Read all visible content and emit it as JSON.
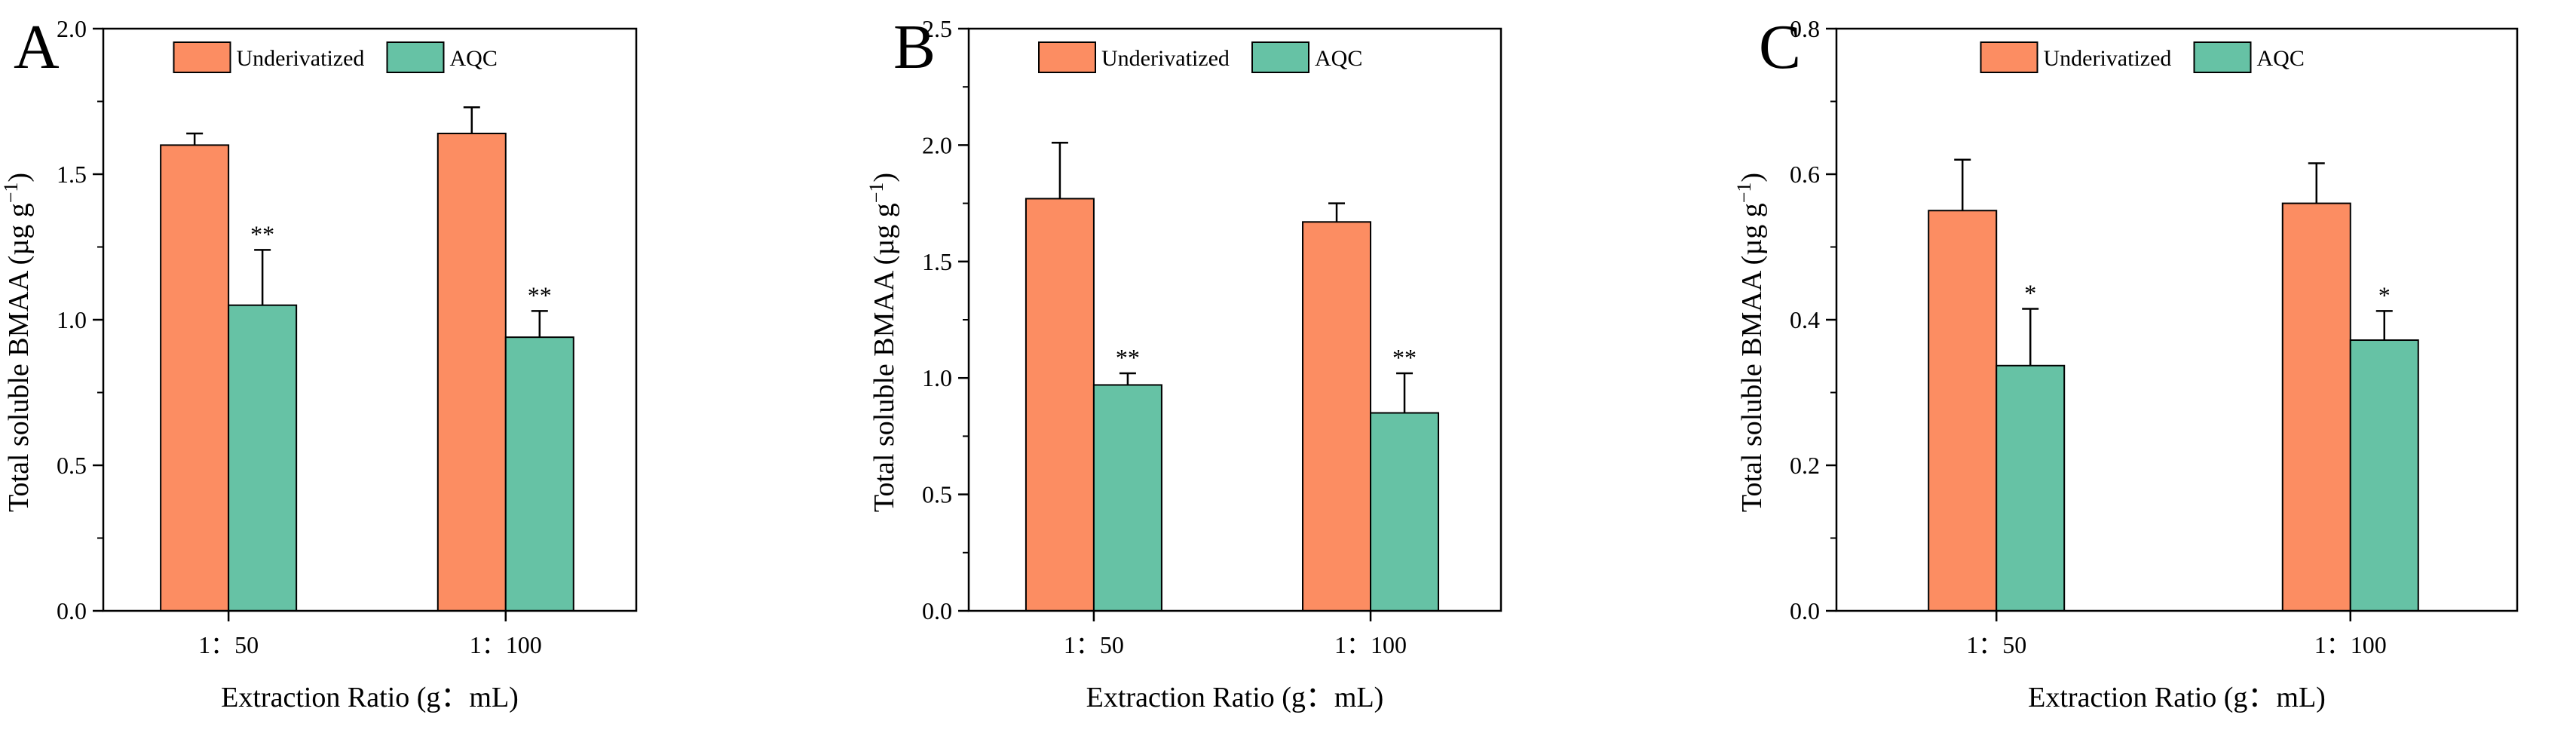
{
  "colors": {
    "underivatized": "#FC8D62",
    "aqc": "#66C2A5",
    "axis": "#000000"
  },
  "legend": {
    "underivatized": "Underivatized",
    "aqc": "AQC"
  },
  "chart_data": [
    {
      "type": "bar",
      "panel": "A",
      "categories": [
        "1：50",
        "1：100"
      ],
      "series": [
        {
          "name": "Underivatized",
          "values": [
            1.6,
            1.64
          ],
          "errors": [
            0.04,
            0.09
          ],
          "sig": [
            "",
            ""
          ]
        },
        {
          "name": "AQC",
          "values": [
            1.05,
            0.94
          ],
          "errors": [
            0.19,
            0.09
          ],
          "sig": [
            "**",
            "**"
          ]
        }
      ],
      "xlabel": "Extraction Ratio (g：mL)",
      "ylabel_main": "Total soluble BMAA (µg g",
      "ylabel_sup": "−1",
      "ylabel_end": ")",
      "ylim": [
        0,
        2.0
      ],
      "yticks": [
        "0.0",
        "0.5",
        "1.0",
        "1.5",
        "2.0"
      ],
      "legend_position": "top-center"
    },
    {
      "type": "bar",
      "panel": "B",
      "categories": [
        "1：50",
        "1：100"
      ],
      "series": [
        {
          "name": "Underivatized",
          "values": [
            1.77,
            1.67
          ],
          "errors": [
            0.24,
            0.08
          ],
          "sig": [
            "",
            ""
          ]
        },
        {
          "name": "AQC",
          "values": [
            0.97,
            0.85
          ],
          "errors": [
            0.05,
            0.17
          ],
          "sig": [
            "**",
            "**"
          ]
        }
      ],
      "xlabel": "Extraction Ratio (g：mL)",
      "ylabel_main": "Total soluble BMAA (µg g",
      "ylabel_sup": "−1",
      "ylabel_end": ")",
      "ylim": [
        0,
        2.5
      ],
      "yticks": [
        "0.0",
        "0.5",
        "1.0",
        "1.5",
        "2.0",
        "2.5"
      ],
      "legend_position": "top-center"
    },
    {
      "type": "bar",
      "panel": "C",
      "categories": [
        "1：50",
        "1：100"
      ],
      "series": [
        {
          "name": "Underivatized",
          "values": [
            0.55,
            0.56
          ],
          "errors": [
            0.07,
            0.055
          ],
          "sig": [
            "",
            ""
          ]
        },
        {
          "name": "AQC",
          "values": [
            0.337,
            0.372
          ],
          "errors": [
            0.078,
            0.04
          ],
          "sig": [
            "*",
            "*"
          ]
        }
      ],
      "xlabel": "Extraction Ratio (g：mL)",
      "ylabel_main": "Total soluble BMAA (µg g",
      "ylabel_sup": "−1",
      "ylabel_end": ")",
      "ylim": [
        0,
        0.8
      ],
      "yticks": [
        "0.0",
        "0.2",
        "0.4",
        "0.6",
        "0.8"
      ],
      "legend_position": "top-center"
    }
  ]
}
